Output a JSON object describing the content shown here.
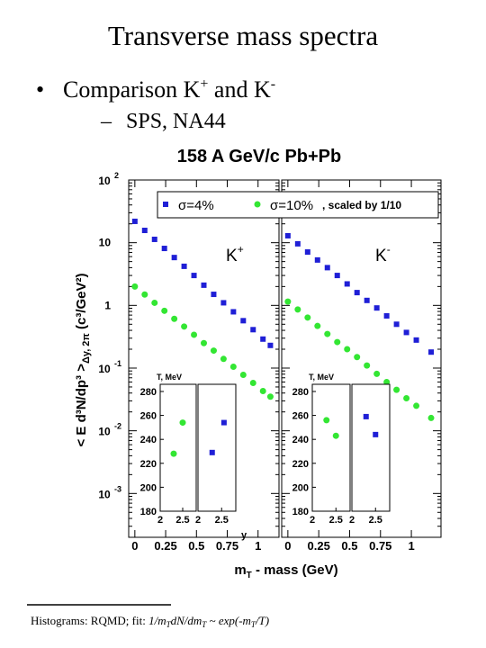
{
  "title": "Transverse mass spectra",
  "bullet": [
    "Comparison K",
    "+",
    " and K",
    "-"
  ],
  "sub_bullet": "SPS, NA44",
  "footnote": [
    "Histograms: RQMD;  fit:  ",
    "1/m",
    "T",
    "dN/dm",
    "T",
    " ~ exp(-m",
    "T",
    "/T)"
  ],
  "chart_data": [
    {
      "type": "scatter",
      "title": "158 A GeV/c Pb+Pb",
      "y_label": [
        "< E d³N/dp³ >",
        "Δy, 2π",
        " (c³/GeV²)"
      ],
      "x_label": [
        "m",
        "T",
        " - mass (GeV)"
      ],
      "panel_label": [
        "K",
        "+"
      ],
      "log_y": true,
      "xlim": [
        -0.05,
        1.17
      ],
      "ylim": [
        0.0002,
        100
      ],
      "xticks": [
        0,
        0.25,
        0.5,
        0.75,
        1
      ],
      "yticks": [
        {
          "value": 100,
          "label": "10",
          "sup": "2"
        },
        10,
        1,
        {
          "value": 0.1,
          "label": "10",
          "sup": "-1"
        },
        {
          "value": 0.01,
          "label": "10",
          "sup": "-2"
        },
        {
          "value": 0.001,
          "label": "10",
          "sup": "-3"
        }
      ],
      "legend_note": ", scaled by 1/10",
      "series": [
        {
          "name": "σ=4%",
          "color": "#1f1fd6",
          "marker": "square",
          "x": [
            0.0,
            0.08,
            0.16,
            0.24,
            0.32,
            0.4,
            0.48,
            0.56,
            0.64,
            0.72,
            0.8,
            0.88,
            0.96,
            1.04,
            1.1
          ],
          "values": [
            21.9,
            15.7,
            11.3,
            8.1,
            5.8,
            4.2,
            3.0,
            2.1,
            1.5,
            1.1,
            0.79,
            0.57,
            0.41,
            0.29,
            0.23
          ]
        },
        {
          "name": "σ=10%",
          "color": "#33e633",
          "marker": "circle",
          "x": [
            0.0,
            0.08,
            0.16,
            0.24,
            0.32,
            0.4,
            0.48,
            0.56,
            0.64,
            0.72,
            0.8,
            0.88,
            0.96,
            1.04,
            1.1
          ],
          "values": [
            2.0,
            1.49,
            1.1,
            0.82,
            0.61,
            0.46,
            0.34,
            0.25,
            0.19,
            0.14,
            0.105,
            0.078,
            0.058,
            0.043,
            0.035
          ]
        }
      ]
    },
    {
      "type": "scatter",
      "panel_label": [
        "K",
        "-"
      ],
      "log_y": true,
      "xlim": [
        -0.05,
        1.24
      ],
      "ylim": [
        0.0002,
        100
      ],
      "xticks": [
        0,
        0.25,
        0.5,
        0.75,
        1
      ],
      "series": [
        {
          "color": "#1f1fd6",
          "marker": "square",
          "x": [
            0.0,
            0.08,
            0.16,
            0.24,
            0.32,
            0.4,
            0.48,
            0.56,
            0.64,
            0.72,
            0.8,
            0.88,
            0.96,
            1.04,
            1.16
          ],
          "values": [
            12.9,
            9.6,
            7.1,
            5.3,
            4.0,
            3.0,
            2.2,
            1.6,
            1.2,
            0.91,
            0.68,
            0.5,
            0.37,
            0.28,
            0.18
          ]
        },
        {
          "color": "#33e633",
          "marker": "circle",
          "x": [
            0.0,
            0.08,
            0.16,
            0.24,
            0.32,
            0.4,
            0.48,
            0.56,
            0.64,
            0.72,
            0.8,
            0.88,
            0.96,
            1.04,
            1.16
          ],
          "values": [
            1.15,
            0.86,
            0.64,
            0.47,
            0.35,
            0.26,
            0.2,
            0.15,
            0.11,
            0.081,
            0.06,
            0.045,
            0.033,
            0.025,
            0.016
          ]
        }
      ]
    },
    {
      "type": "scatter",
      "y_label": "T, MeV",
      "xlim": [
        2,
        2.8
      ],
      "ylim": [
        180,
        286
      ],
      "xticks": [
        2,
        2.5
      ],
      "yticks": [
        180,
        200,
        220,
        240,
        260,
        280
      ],
      "series": [
        {
          "color": "#33e633",
          "marker": "circle",
          "x": [
            2.3,
            2.5
          ],
          "values": [
            228,
            254
          ]
        }
      ]
    },
    {
      "type": "scatter",
      "x_label": "y",
      "xlim": [
        2,
        2.8
      ],
      "ylim": [
        180,
        286
      ],
      "xticks": [
        2,
        2.5
      ],
      "series": [
        {
          "color": "#1f1fd6",
          "marker": "square",
          "x": [
            2.3,
            2.55
          ],
          "values": [
            229,
            254
          ]
        }
      ]
    },
    {
      "type": "scatter",
      "y_label": "T, MeV",
      "xlim": [
        2,
        2.8
      ],
      "ylim": [
        180,
        286
      ],
      "xticks": [
        2,
        2.5
      ],
      "yticks": [
        180,
        200,
        220,
        240,
        260,
        280
      ],
      "series": [
        {
          "color": "#33e633",
          "marker": "circle",
          "x": [
            2.3,
            2.5
          ],
          "values": [
            256,
            243
          ]
        }
      ]
    },
    {
      "type": "scatter",
      "xlim": [
        2,
        2.8
      ],
      "ylim": [
        180,
        286
      ],
      "xticks": [
        2,
        2.5
      ],
      "series": [
        {
          "color": "#1f1fd6",
          "marker": "square",
          "x": [
            2.3,
            2.5
          ],
          "values": [
            259,
            244
          ]
        }
      ]
    }
  ]
}
